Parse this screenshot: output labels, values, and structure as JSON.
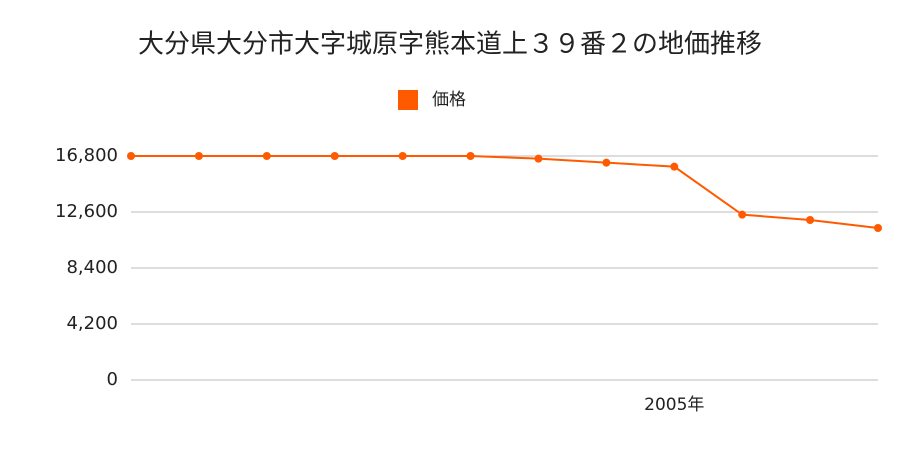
{
  "chart_data": {
    "type": "line",
    "title": "大分県大分市大字城原字熊本道上３９番２の地価推移",
    "categories": [
      null,
      null,
      null,
      null,
      null,
      null,
      null,
      null,
      "2005年",
      null,
      null,
      null
    ],
    "series": [
      {
        "name": "価格",
        "color": "#ff5a00",
        "values": [
          16800,
          16800,
          16800,
          16800,
          16800,
          16800,
          16600,
          16300,
          16000,
          12400,
          12000,
          11400
        ]
      }
    ],
    "ylim": [
      0,
      16800
    ],
    "yticks": [
      0,
      {
        "value": 4200,
        "label": "4,200"
      },
      {
        "value": 8400,
        "label": "8,400"
      },
      {
        "value": 12600,
        "label": "12,600"
      },
      {
        "value": 16800,
        "label": "16,800"
      }
    ],
    "grid": true
  }
}
